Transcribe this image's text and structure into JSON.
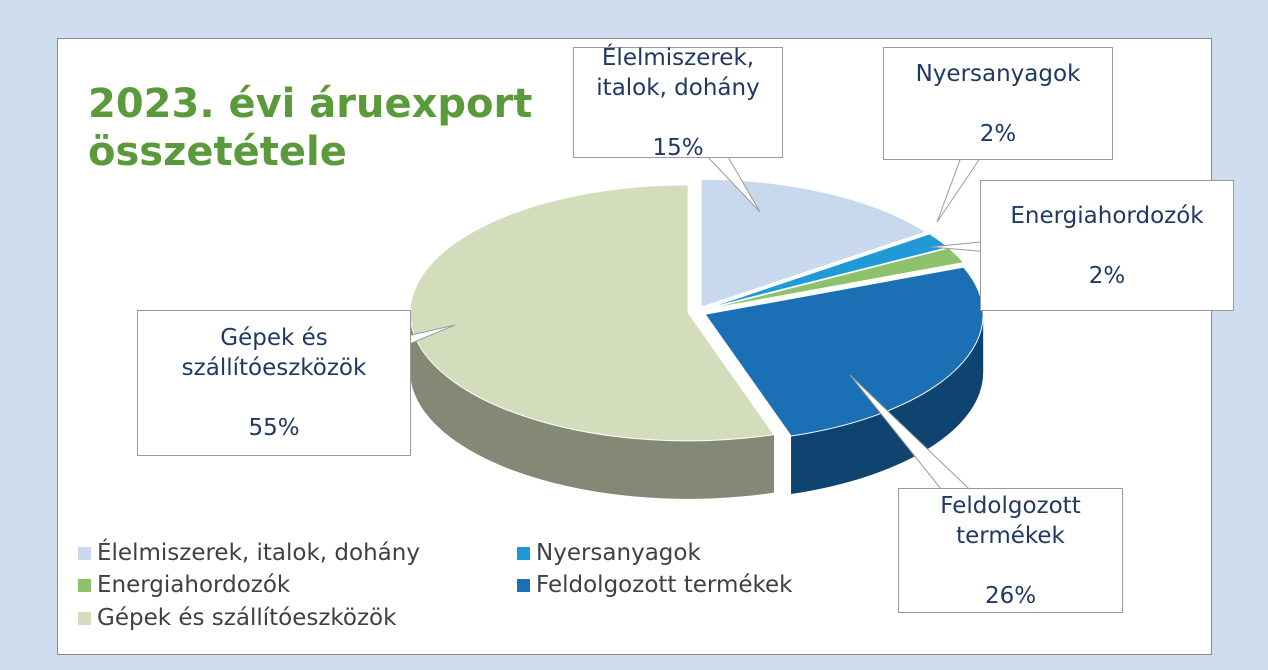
{
  "chart_data": {
    "type": "pie",
    "title": "2023. évi áruexport összetétele",
    "categories": [
      "Élelmiszerek, italok, dohány",
      "Nyersanyagok",
      "Energiahordozók",
      "Feldolgozott termékek",
      "Gépek és szállítóeszközök"
    ],
    "values": [
      15,
      2,
      2,
      26,
      55
    ],
    "value_labels": [
      "15%",
      "2%",
      "2%",
      "26%",
      "55%"
    ],
    "colors": [
      "#c8d9ee",
      "#1f9ad6",
      "#8dc26b",
      "#1b6fb5",
      "#d3ddbb"
    ],
    "legend": "bottom-left"
  }
}
